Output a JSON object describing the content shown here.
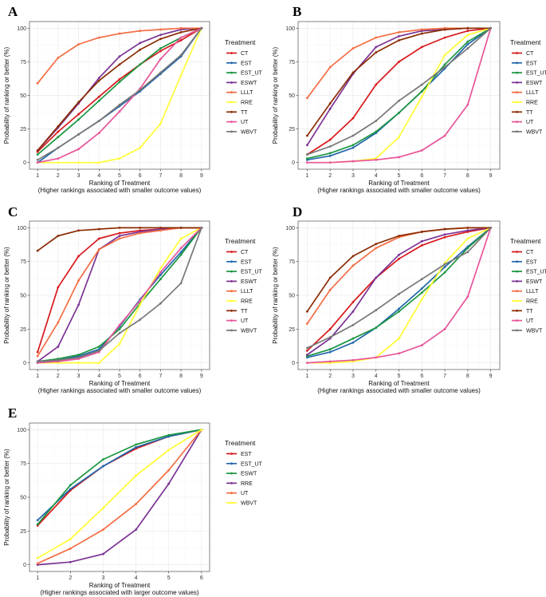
{
  "chart_data": [
    {
      "panel": "A",
      "type": "line",
      "x": [
        1,
        2,
        3,
        4,
        5,
        6,
        7,
        8,
        9
      ],
      "xlabel": "Ranking of Treatment",
      "xlabel_note": "(Higher rankings associated with smaller outcome values)",
      "ylabel": "Probability of ranking or better (%)",
      "ylim": [
        0,
        100
      ],
      "yticks": [
        0,
        25,
        50,
        75,
        100
      ],
      "legend_title": "Treatment",
      "series": [
        {
          "name": "CT",
          "color": "#d7191c",
          "values": [
            8,
            23,
            36,
            49,
            62,
            73,
            83,
            91,
            100
          ]
        },
        {
          "name": "EST",
          "color": "#2166ac",
          "values": [
            0,
            11,
            21,
            31,
            42,
            53,
            66,
            79,
            100
          ]
        },
        {
          "name": "EST_UT",
          "color": "#1a9641",
          "values": [
            6,
            19,
            32,
            46,
            60,
            73,
            85,
            93,
            100
          ]
        },
        {
          "name": "ESWT",
          "color": "#7b3294",
          "values": [
            9,
            26,
            44,
            63,
            79,
            89,
            95,
            99,
            100
          ]
        },
        {
          "name": "LLLT",
          "color": "#f46d43",
          "values": [
            59,
            78,
            88,
            93,
            96,
            98,
            99,
            100,
            100
          ]
        },
        {
          "name": "RRE",
          "color": "#ffff33",
          "values": [
            0,
            0,
            0,
            0,
            3,
            11,
            29,
            65,
            100
          ]
        },
        {
          "name": "TT",
          "color": "#8c2d04",
          "values": [
            9,
            27,
            45,
            61,
            73,
            84,
            92,
            97,
            100
          ]
        },
        {
          "name": "UT",
          "color": "#e7559a",
          "values": [
            0,
            3,
            10,
            22,
            38,
            55,
            77,
            93,
            100
          ]
        },
        {
          "name": "WBVT",
          "color": "#777777",
          "values": [
            2,
            11,
            21,
            31,
            43,
            54,
            67,
            80,
            100
          ]
        }
      ]
    },
    {
      "panel": "B",
      "type": "line",
      "x": [
        1,
        2,
        3,
        4,
        5,
        6,
        7,
        8,
        9
      ],
      "xlabel": "Ranking of Treatment",
      "xlabel_note": "(Higher rankings associated with smaller outcome values)",
      "ylabel": "Probability of ranking or better (%)",
      "ylim": [
        0,
        100
      ],
      "yticks": [
        0,
        25,
        50,
        75,
        100
      ],
      "legend_title": "Treatment",
      "series": [
        {
          "name": "CT",
          "color": "#d7191c",
          "values": [
            6,
            17,
            33,
            58,
            75,
            86,
            93,
            98,
            100
          ]
        },
        {
          "name": "EST",
          "color": "#2166ac",
          "values": [
            2,
            5,
            11,
            22,
            37,
            53,
            70,
            88,
            100
          ]
        },
        {
          "name": "EST_UT",
          "color": "#1a9641",
          "values": [
            3,
            7,
            13,
            23,
            37,
            53,
            73,
            90,
            100
          ]
        },
        {
          "name": "ESWT",
          "color": "#7b3294",
          "values": [
            13,
            40,
            66,
            86,
            94,
            98,
            99,
            100,
            100
          ]
        },
        {
          "name": "LLLT",
          "color": "#f46d43",
          "values": [
            48,
            71,
            85,
            93,
            97,
            99,
            100,
            100,
            100
          ]
        },
        {
          "name": "RRE",
          "color": "#ffff33",
          "values": [
            0,
            0,
            1,
            3,
            19,
            49,
            80,
            95,
            100
          ]
        },
        {
          "name": "TT",
          "color": "#8c2d04",
          "values": [
            20,
            44,
            67,
            82,
            91,
            96,
            99,
            100,
            100
          ]
        },
        {
          "name": "UT",
          "color": "#e7559a",
          "values": [
            0,
            0,
            1,
            2,
            4,
            9,
            20,
            43,
            100
          ]
        },
        {
          "name": "WBVT",
          "color": "#777777",
          "values": [
            6,
            12,
            20,
            31,
            46,
            58,
            71,
            85,
            100
          ]
        }
      ]
    },
    {
      "panel": "C",
      "type": "line",
      "x": [
        1,
        2,
        3,
        4,
        5,
        6,
        7,
        8,
        9
      ],
      "xlabel": "Ranking of Treatment",
      "xlabel_note": "(Higher rankings associated with smaller outcome values)",
      "ylabel": "Probability of ranking or better (%)",
      "ylim": [
        0,
        100
      ],
      "yticks": [
        0,
        25,
        50,
        75,
        100
      ],
      "legend_title": "Treatment",
      "series": [
        {
          "name": "CT",
          "color": "#d7191c",
          "values": [
            8,
            56,
            79,
            92,
            96,
            98,
            99,
            100,
            100
          ]
        },
        {
          "name": "EST",
          "color": "#2166ac",
          "values": [
            0,
            2,
            5,
            10,
            27,
            47,
            65,
            82,
            100
          ]
        },
        {
          "name": "EST_UT",
          "color": "#1a9641",
          "values": [
            1,
            3,
            6,
            12,
            25,
            44,
            62,
            80,
            100
          ]
        },
        {
          "name": "ESWT",
          "color": "#7b3294",
          "values": [
            1,
            12,
            43,
            84,
            94,
            97,
            99,
            100,
            100
          ]
        },
        {
          "name": "LLLT",
          "color": "#f46d43",
          "values": [
            5,
            30,
            61,
            84,
            92,
            96,
            98,
            100,
            100
          ]
        },
        {
          "name": "RRE",
          "color": "#ffff33",
          "values": [
            0,
            0,
            0,
            0,
            14,
            43,
            70,
            92,
            100
          ]
        },
        {
          "name": "TT",
          "color": "#8c2d04",
          "values": [
            83,
            94,
            98,
            99,
            100,
            100,
            100,
            100,
            100
          ]
        },
        {
          "name": "UT",
          "color": "#e7559a",
          "values": [
            0,
            1,
            3,
            8,
            28,
            46,
            67,
            85,
            100
          ]
        },
        {
          "name": "WBVT",
          "color": "#777777",
          "values": [
            1,
            2,
            4,
            9,
            22,
            32,
            44,
            59,
            100
          ]
        }
      ]
    },
    {
      "panel": "D",
      "type": "line",
      "x": [
        1,
        2,
        3,
        4,
        5,
        6,
        7,
        8,
        9
      ],
      "xlabel": "Ranking of Treatment",
      "xlabel_note": "(Higher rankings associated with smaller outcome values)",
      "ylabel": "Probability of ranking or better (%)",
      "ylim": [
        0,
        100
      ],
      "yticks": [
        0,
        25,
        50,
        75,
        100
      ],
      "legend_title": "Treatment",
      "series": [
        {
          "name": "CT",
          "color": "#d7191c",
          "values": [
            9,
            25,
            45,
            63,
            77,
            87,
            93,
            97,
            100
          ]
        },
        {
          "name": "EST",
          "color": "#2166ac",
          "values": [
            4,
            8,
            15,
            26,
            40,
            55,
            71,
            86,
            100
          ]
        },
        {
          "name": "EST_UT",
          "color": "#1a9641",
          "values": [
            5,
            10,
            18,
            26,
            38,
            52,
            67,
            85,
            100
          ]
        },
        {
          "name": "ESWT",
          "color": "#7b3294",
          "values": [
            6,
            18,
            38,
            63,
            80,
            90,
            95,
            98,
            100
          ]
        },
        {
          "name": "LLLT",
          "color": "#f46d43",
          "values": [
            29,
            54,
            72,
            85,
            93,
            97,
            99,
            100,
            100
          ]
        },
        {
          "name": "RRE",
          "color": "#ffff33",
          "values": [
            0,
            0,
            1,
            4,
            18,
            47,
            74,
            92,
            100
          ]
        },
        {
          "name": "TT",
          "color": "#8c2d04",
          "values": [
            38,
            63,
            79,
            88,
            94,
            97,
            99,
            100,
            100
          ]
        },
        {
          "name": "UT",
          "color": "#e7559a",
          "values": [
            0,
            1,
            2,
            4,
            7,
            13,
            25,
            49,
            100
          ]
        },
        {
          "name": "WBVT",
          "color": "#777777",
          "values": [
            11,
            19,
            28,
            39,
            51,
            62,
            73,
            82,
            100
          ]
        }
      ]
    },
    {
      "panel": "E",
      "type": "line",
      "x": [
        1,
        2,
        3,
        4,
        5,
        6
      ],
      "xlabel": "Ranking of Treatment",
      "xlabel_note": "(Higher rankings associated with larger outcome values)",
      "ylabel": "Probability of ranking or better (%)",
      "ylim": [
        0,
        100
      ],
      "yticks": [
        0,
        25,
        50,
        75,
        100
      ],
      "legend_title": "Treatment",
      "series": [
        {
          "name": "EST",
          "color": "#d7191c",
          "values": [
            29,
            55,
            73,
            86,
            95,
            100
          ]
        },
        {
          "name": "EST_UT",
          "color": "#2166ac",
          "values": [
            33,
            56,
            73,
            87,
            95,
            100
          ]
        },
        {
          "name": "ESWT",
          "color": "#1a9641",
          "values": [
            30,
            59,
            78,
            89,
            96,
            100
          ]
        },
        {
          "name": "RRE",
          "color": "#7b3294",
          "values": [
            0,
            2,
            8,
            26,
            60,
            100
          ]
        },
        {
          "name": "UT",
          "color": "#f46d43",
          "values": [
            1,
            12,
            26,
            45,
            70,
            100
          ]
        },
        {
          "name": "WBVT",
          "color": "#ffff33",
          "values": [
            5,
            19,
            42,
            66,
            85,
            100
          ]
        }
      ]
    }
  ]
}
